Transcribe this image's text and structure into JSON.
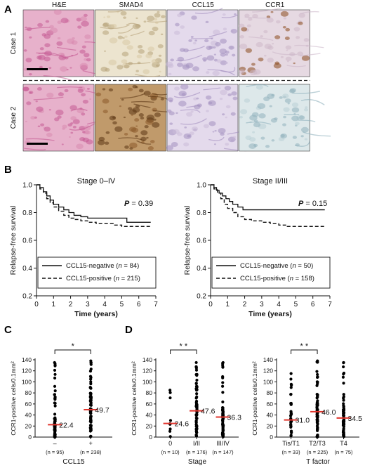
{
  "panels": {
    "A": "A",
    "B": "B",
    "C": "C",
    "D": "D"
  },
  "histology": {
    "columns": [
      "H&E",
      "SMAD4",
      "CCL15",
      "CCR1"
    ],
    "rows": [
      "Case 1",
      "Case 2"
    ],
    "colors": {
      "he": [
        "#d98ab0",
        "#c45a93",
        "#e7b1cb"
      ],
      "smad4_case1": [
        "#d8c9a6",
        "#b7a27a",
        "#ece4cf"
      ],
      "smad4_case2": [
        "#8a5a2a",
        "#5b3714",
        "#c09a6b"
      ],
      "ccl15": [
        "#cbbcd8",
        "#a390c0",
        "#e4daec"
      ],
      "ccr1_case1": [
        "#8a4a1e",
        "#cdb8c9",
        "#e6d9e2"
      ],
      "ccr1_case2": [
        "#b9d0d6",
        "#8fb0bc",
        "#dde8ea"
      ]
    }
  },
  "chart_data": [
    {
      "type": "line",
      "title": "Stage 0–IV",
      "xlabel": "Time (years)",
      "ylabel": "Relapse-free survival",
      "xlim": [
        0,
        7
      ],
      "ylim": [
        0.2,
        1.0
      ],
      "xticks": [
        "0",
        "1",
        "2",
        "3",
        "4",
        "5",
        "6",
        "7"
      ],
      "yticks": [
        "0.2",
        "0.4",
        "0.6",
        "0.8",
        "1.0"
      ],
      "p_label": "P",
      "p_value": " = 0.39",
      "legend": [
        {
          "style": "solid",
          "name": "CCL15-negative (",
          "n_label": "n",
          "n_value": " = 84)"
        },
        {
          "style": "dashed",
          "name": "CCL15-positive (",
          "n_label": "n",
          "n_value": " = 215)"
        }
      ],
      "series": [
        {
          "style": "solid",
          "points": [
            [
              0,
              1.0
            ],
            [
              0.2,
              0.98
            ],
            [
              0.4,
              0.95
            ],
            [
              0.6,
              0.92
            ],
            [
              0.8,
              0.89
            ],
            [
              1.0,
              0.86
            ],
            [
              1.3,
              0.84
            ],
            [
              1.6,
              0.82
            ],
            [
              1.9,
              0.8
            ],
            [
              2.2,
              0.78
            ],
            [
              2.6,
              0.77
            ],
            [
              3.0,
              0.76
            ],
            [
              3.4,
              0.76
            ],
            [
              3.4,
              0.76
            ],
            [
              5.3,
              0.76
            ],
            [
              5.3,
              0.73
            ],
            [
              6.7,
              0.73
            ]
          ]
        },
        {
          "style": "dashed",
          "points": [
            [
              0,
              1.0
            ],
            [
              0.2,
              0.97
            ],
            [
              0.4,
              0.94
            ],
            [
              0.6,
              0.9
            ],
            [
              0.8,
              0.87
            ],
            [
              1.0,
              0.84
            ],
            [
              1.3,
              0.81
            ],
            [
              1.6,
              0.78
            ],
            [
              1.9,
              0.76
            ],
            [
              2.2,
              0.75
            ],
            [
              2.6,
              0.74
            ],
            [
              3.0,
              0.73
            ],
            [
              3.5,
              0.72
            ],
            [
              4.0,
              0.72
            ],
            [
              4.5,
              0.71
            ],
            [
              5.0,
              0.7
            ],
            [
              6.7,
              0.7
            ]
          ]
        }
      ]
    },
    {
      "type": "line",
      "title": "Stage II/III",
      "xlabel": "Time (years)",
      "ylabel": "Relapse-free survival",
      "xlim": [
        0,
        7
      ],
      "ylim": [
        0.2,
        1.0
      ],
      "xticks": [
        "0",
        "1",
        "2",
        "3",
        "4",
        "5",
        "6",
        "7"
      ],
      "yticks": [
        "0.2",
        "0.4",
        "0.6",
        "0.8",
        "1.0"
      ],
      "p_label": "P",
      "p_value": " = 0.15",
      "legend": [
        {
          "style": "solid",
          "name": "CCL15-negative (",
          "n_label": "n",
          "n_value": " = 50)"
        },
        {
          "style": "dashed",
          "name": "CCL15-positive (",
          "n_label": "n",
          "n_value": " = 158)"
        }
      ],
      "series": [
        {
          "style": "solid",
          "points": [
            [
              0,
              1.0
            ],
            [
              0.2,
              0.98
            ],
            [
              0.35,
              0.96
            ],
            [
              0.5,
              0.94
            ],
            [
              0.7,
              0.92
            ],
            [
              0.9,
              0.9
            ],
            [
              1.1,
              0.88
            ],
            [
              1.3,
              0.86
            ],
            [
              1.6,
              0.84
            ],
            [
              1.9,
              0.82
            ],
            [
              2.2,
              0.82
            ],
            [
              6.7,
              0.82
            ]
          ]
        },
        {
          "style": "dashed",
          "points": [
            [
              0,
              1.0
            ],
            [
              0.2,
              0.97
            ],
            [
              0.4,
              0.94
            ],
            [
              0.6,
              0.9
            ],
            [
              0.8,
              0.86
            ],
            [
              1.0,
              0.83
            ],
            [
              1.3,
              0.8
            ],
            [
              1.6,
              0.77
            ],
            [
              2.0,
              0.75
            ],
            [
              2.4,
              0.74
            ],
            [
              3.0,
              0.73
            ],
            [
              3.5,
              0.72
            ],
            [
              4.0,
              0.71
            ],
            [
              4.5,
              0.7
            ],
            [
              6.7,
              0.7
            ]
          ]
        }
      ]
    },
    {
      "type": "scatter",
      "ylabel": "CCR1-positive cells/0.1mm²",
      "xlabel": "CCL15",
      "ylim": [
        0,
        140
      ],
      "yticks": [
        "0",
        "20",
        "40",
        "60",
        "80",
        "100",
        "120",
        "140"
      ],
      "categories": [
        "–",
        "+"
      ],
      "n_labels": [
        "(n = 95)",
        "(n = 238)"
      ],
      "medians": [
        22.4,
        49.7
      ],
      "median_labels": [
        "22.4",
        "49.7"
      ],
      "max_values": [
        135,
        138
      ],
      "significance": "*"
    },
    {
      "type": "scatter",
      "ylabel": "CCR1-positive cells/0.1mm²",
      "xlabel": "Stage",
      "ylim": [
        0,
        140
      ],
      "yticks": [
        "0",
        "20",
        "40",
        "60",
        "80",
        "100",
        "120",
        "140"
      ],
      "categories": [
        "0",
        "I/II",
        "III/IV"
      ],
      "n_labels": [
        "(n = 10)",
        "(n = 176)",
        "(n = 147)"
      ],
      "medians": [
        24.6,
        47.6,
        36.3
      ],
      "median_labels": [
        "24.6",
        "47.6",
        "36.3"
      ],
      "max_values": [
        85,
        135,
        135
      ],
      "significance": "* *"
    },
    {
      "type": "scatter",
      "ylabel": "CCR1-positive cells/0.1mm²",
      "xlabel": "T factor",
      "ylim": [
        0,
        140
      ],
      "yticks": [
        "0",
        "20",
        "40",
        "60",
        "80",
        "100",
        "120",
        "140"
      ],
      "categories": [
        "Tis/T1",
        "T2/T3",
        "T4"
      ],
      "n_labels": [
        "(n = 33)",
        "(n = 225)",
        "(n = 75)"
      ],
      "medians": [
        31.0,
        46.0,
        34.5
      ],
      "median_labels": [
        "31.0",
        "46.0",
        "34.5"
      ],
      "max_values": [
        115,
        138,
        135
      ],
      "significance": "* *"
    }
  ]
}
